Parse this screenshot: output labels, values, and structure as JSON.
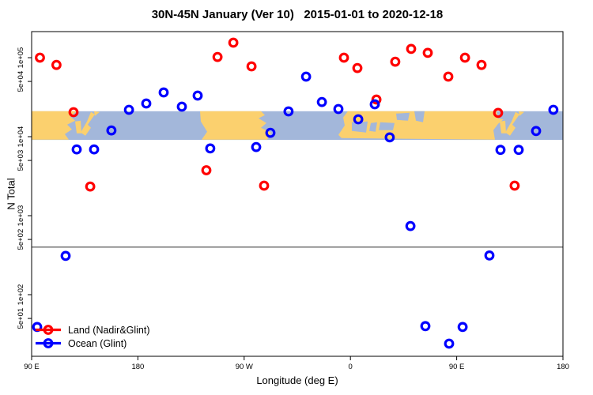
{
  "chart_data": {
    "type": "scatter",
    "title": "30N-45N January (Ver 10)   2015-01-01 to 2020-12-18",
    "xlabel": "Longitude (deg E)",
    "ylabel": "N Total",
    "x_axis": {
      "note": "wrapped longitude axis spanning 450 degrees: 90E to 180, westward hemisphere, then 0 to 180 again",
      "tick_positions_deg": [
        90,
        180,
        270,
        360,
        450,
        540
      ],
      "tick_labels": [
        "90 E",
        "180",
        "90 W",
        "0",
        "90 E",
        "180"
      ],
      "range_deg": [
        90,
        540
      ]
    },
    "y_axis": {
      "scale": "log10",
      "tick_values": [
        50,
        100,
        500,
        1000,
        5000,
        10000,
        50000,
        100000
      ],
      "tick_labels": [
        "5e+01",
        "1e+02",
        "5e+02",
        "1e+03",
        "5e+03",
        "1e+04",
        "5e+04",
        "1e+05"
      ],
      "range": [
        17,
        214000
      ]
    },
    "reference_line_value": 400,
    "map_band": {
      "description": "world coastline strip for latitude band 30N-45N drawn across the plot",
      "value_top": 21000,
      "value_bottom": 9100,
      "land_color": "#FBD06E",
      "ocean_color": "#A3B7DA"
    },
    "series": [
      {
        "name": "Land (Nadir&Glint)",
        "color": "#FF0000",
        "points": [
          [
            97,
            100000
          ],
          [
            111,
            81000
          ],
          [
            125.5,
            20400
          ],
          [
            139.6,
            2340
          ],
          [
            238,
            3760
          ],
          [
            247.4,
            102000
          ],
          [
            260.8,
            155000
          ],
          [
            276.2,
            77600
          ],
          [
            286.9,
            2400
          ],
          [
            354.5,
            100000
          ],
          [
            365.9,
            74000
          ],
          [
            382,
            29500
          ],
          [
            398,
            89000
          ],
          [
            411.4,
            129000
          ],
          [
            425.5,
            115000
          ],
          [
            442.9,
            57500
          ],
          [
            457,
            100000
          ],
          [
            471,
            81000
          ],
          [
            485.1,
            20000
          ],
          [
            499.1,
            2400
          ]
        ]
      },
      {
        "name": "Ocean (Glint)",
        "color": "#0000FF",
        "points": [
          [
            94.7,
            39
          ],
          [
            118.8,
            310
          ],
          [
            128.2,
            6900
          ],
          [
            142.9,
            6900
          ],
          [
            157.6,
            12000
          ],
          [
            172.4,
            21900
          ],
          [
            187.1,
            26300
          ],
          [
            201.8,
            36300
          ],
          [
            217.2,
            24000
          ],
          [
            230.6,
            33100
          ],
          [
            241.3,
            7100
          ],
          [
            280.2,
            7400
          ],
          [
            292.2,
            11200
          ],
          [
            307.6,
            20900
          ],
          [
            322.4,
            57500
          ],
          [
            335.8,
            27500
          ],
          [
            349.8,
            22400
          ],
          [
            366.6,
            16600
          ],
          [
            380.6,
            25700
          ],
          [
            393.3,
            9800
          ],
          [
            410.8,
            740
          ],
          [
            423.5,
            40
          ],
          [
            443.6,
            24
          ],
          [
            455,
            39
          ],
          [
            477.7,
            313
          ],
          [
            487.1,
            6800
          ],
          [
            502.5,
            6800
          ],
          [
            517.2,
            11800
          ],
          [
            531.9,
            21900
          ]
        ]
      }
    ],
    "legend": {
      "position": "bottom-left-inside-plot",
      "entries": [
        "Land (Nadir&Glint)",
        "Ocean (Glint)"
      ]
    }
  }
}
